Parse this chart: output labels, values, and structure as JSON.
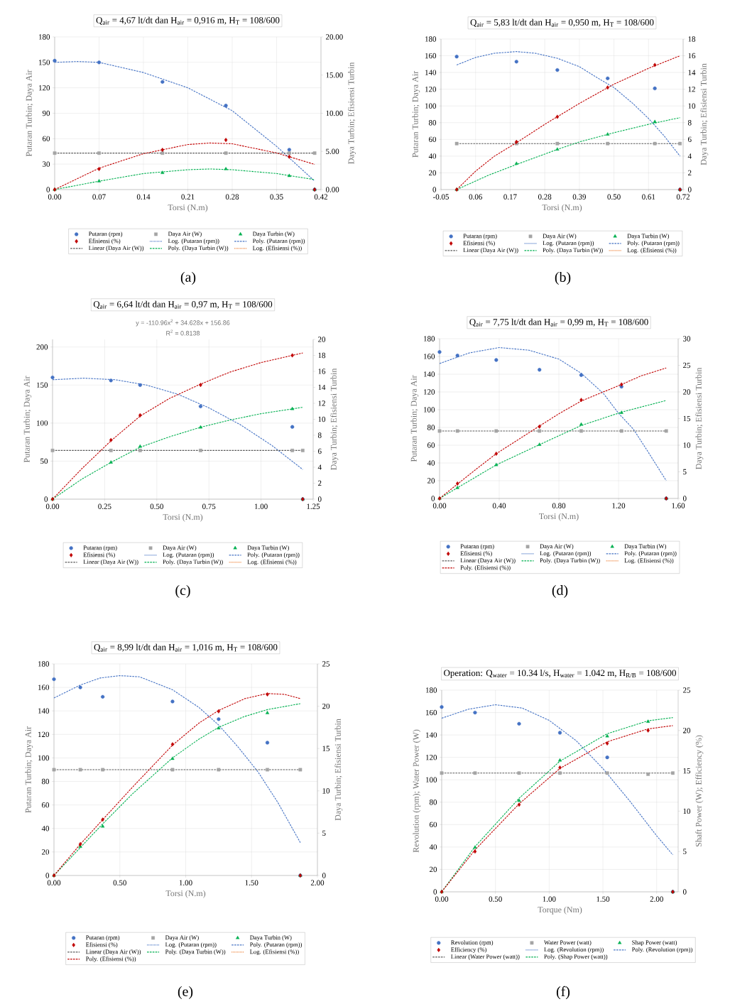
{
  "chart_data": [
    {
      "type": "scatter",
      "title": "Q$_{air}$ = 4,67 lt/dt dan H$_{air}$ = 0,916 m, H$_{T}$ = 108/600",
      "xlabel": "Torsi (N.m)",
      "ylabel": "Putaran Turbin; Daya Air",
      "y2label": "Daya Turbin; Efisiensi Turbin",
      "annotations": [
        "(a)"
      ],
      "xlim": [
        0,
        0.42
      ],
      "xticks": [
        {
          "value": 0,
          "label": "0.00"
        },
        0.07,
        0.14,
        0.21,
        0.28,
        0.35,
        0.42
      ],
      "ylim": [
        0,
        180
      ],
      "yticks": [
        0,
        30,
        60,
        90,
        120,
        150,
        180
      ],
      "y2lim": [
        0,
        20
      ],
      "y2ticks": [
        {
          "value": 0,
          "label": "0.00"
        },
        {
          "value": 5,
          "label": "5.00"
        },
        {
          "value": 10,
          "label": "10.00"
        },
        {
          "value": 15,
          "label": "15.00"
        },
        {
          "value": 20,
          "label": "20.00"
        }
      ],
      "grid": true,
      "legend": "bottom",
      "x": [
        0,
        0.07,
        0.17,
        0.27,
        0.37,
        0.41
      ],
      "series": [
        {
          "name": "Putaran (rpm)",
          "type": "scatter",
          "marker": "circle",
          "color": "#4472c4",
          "values": [
            152,
            150,
            127,
            99,
            47,
            0
          ]
        },
        {
          "name": "Daya Air (W)",
          "type": "scatter",
          "marker": "square",
          "color": "#a5a5a5",
          "values": [
            43,
            43,
            43,
            43,
            43,
            43
          ]
        },
        {
          "name": "Daya Turbin (W)",
          "type": "scatter",
          "marker": "triangle",
          "axis": "y2",
          "color": "#00b050",
          "values": [
            0,
            1.1,
            2.2,
            2.7,
            1.8,
            0
          ]
        },
        {
          "name": "Efisiensi (%)",
          "type": "scatter",
          "marker": "diamond",
          "axis": "y2",
          "color": "#c00000",
          "values": [
            0,
            2.7,
            5.2,
            6.5,
            4.3,
            0
          ]
        },
        {
          "name": "Log. (Putaran (rpm))",
          "type": "line",
          "line_style": "dotted",
          "color": "#4472c4",
          "values": [
            null,
            null,
            null,
            null,
            null,
            null
          ]
        },
        {
          "name": "Poly. (Putaran (rpm))",
          "type": "line",
          "line_style": "dashed",
          "color": "#4472c4",
          "x": [
            0,
            0.035,
            0.07,
            0.14,
            0.21,
            0.28,
            0.35,
            0.41
          ],
          "values": [
            150,
            151,
            150,
            138,
            120,
            93,
            51,
            10
          ]
        },
        {
          "name": "Linear (Daya Air (W))",
          "type": "line",
          "line_style": "dashed",
          "color": "#595959",
          "x": [
            0,
            0.41
          ],
          "values": [
            43,
            43
          ]
        },
        {
          "name": "Poly. (Daya Turbin (W))",
          "type": "line",
          "line_style": "dashed",
          "axis": "y2",
          "color": "#00b050",
          "x": [
            0,
            0.07,
            0.14,
            0.21,
            0.245,
            0.28,
            0.35,
            0.41
          ],
          "values": [
            0,
            1.1,
            2.1,
            2.6,
            2.7,
            2.6,
            2.1,
            1.3
          ]
        },
        {
          "name": "Log. (Efisiensi (%))",
          "type": "line",
          "line_style": "dotted",
          "color": "#ed7d31",
          "values": [
            null,
            null,
            null,
            null,
            null,
            null
          ]
        },
        {
          "type": "line",
          "line_style": "dashed",
          "axis": "y2",
          "color": "#c00000",
          "x": [
            0,
            0.07,
            0.14,
            0.21,
            0.245,
            0.28,
            0.35,
            0.41
          ],
          "values": [
            0,
            2.8,
            4.7,
            5.9,
            6.1,
            6.0,
            4.8,
            3.3
          ]
        }
      ]
    },
    {
      "type": "scatter",
      "title": "Q$_{air}$ = 5,83 lt/dt dan H$_{air}$ = 0,950 m, H$_{T}$ = 108/600",
      "xlabel": "Torsi (N.m)",
      "ylabel": "Putaran Turbin; Daya Air",
      "y2label": "Daya Turbin; Efisiensi Turbin",
      "annotations": [
        "(b)"
      ],
      "xlim": [
        -0.05,
        0.72
      ],
      "xticks": [
        -0.05,
        0.06,
        0.17,
        0.28,
        0.39,
        {
          "value": 0.5,
          "label": "0.50"
        },
        0.61,
        0.72
      ],
      "ylim": [
        0,
        180
      ],
      "yticks": [
        0,
        20,
        40,
        60,
        80,
        100,
        120,
        140,
        160,
        180
      ],
      "y2lim": [
        0,
        18
      ],
      "y2ticks": [
        0,
        2,
        4,
        6,
        8,
        10,
        12,
        14,
        16,
        18
      ],
      "grid": true,
      "legend": "bottom",
      "x": [
        0,
        0.19,
        0.32,
        0.48,
        0.63,
        0.71
      ],
      "series": [
        {
          "name": "Putaran (rpm)",
          "type": "scatter",
          "marker": "circle",
          "color": "#4472c4",
          "values": [
            159,
            153,
            143,
            133,
            121,
            0
          ]
        },
        {
          "name": "Daya Air (W)",
          "type": "scatter",
          "marker": "square",
          "color": "#a5a5a5",
          "values": [
            55,
            55,
            55,
            55,
            55,
            55
          ]
        },
        {
          "name": "Daya Turbin (W)",
          "type": "scatter",
          "marker": "triangle",
          "axis": "y2",
          "color": "#00b050",
          "values": [
            0,
            3.1,
            4.8,
            6.6,
            8.1,
            0
          ]
        },
        {
          "name": "Efisiensi (%)",
          "type": "scatter",
          "marker": "diamond",
          "axis": "y2",
          "color": "#c00000",
          "values": [
            0,
            5.7,
            8.7,
            12.2,
            14.9,
            0
          ]
        },
        {
          "name": "Log. (Putaran (rpm))",
          "type": "line",
          "line_style": "dotted",
          "color": "#4472c4",
          "values": [
            null,
            null,
            null,
            null,
            null,
            null
          ]
        },
        {
          "name": "Poly. (Putaran (rpm))",
          "type": "line",
          "line_style": "dashed",
          "color": "#4472c4",
          "x": [
            0,
            0.06,
            0.12,
            0.19,
            0.25,
            0.32,
            0.39,
            0.45,
            0.5,
            0.56,
            0.61,
            0.66,
            0.71
          ],
          "values": [
            149,
            158,
            163,
            165,
            163,
            157,
            147,
            133,
            122,
            103,
            85,
            64,
            40
          ]
        },
        {
          "name": "Linear (Daya Air (W))",
          "type": "line",
          "line_style": "dashed",
          "color": "#595959",
          "x": [
            0,
            0.71
          ],
          "values": [
            55,
            55
          ]
        },
        {
          "name": "Poly. (Daya Turbin (W))",
          "type": "line",
          "line_style": "dashed",
          "axis": "y2",
          "color": "#00b050",
          "x": [
            0,
            0.1,
            0.19,
            0.32,
            0.39,
            0.5,
            0.61,
            0.71
          ],
          "values": [
            0,
            1.7,
            3.0,
            4.8,
            5.7,
            6.8,
            7.8,
            8.6
          ]
        },
        {
          "name": "Log. (Efisiensi (%))",
          "type": "line",
          "line_style": "dotted",
          "color": "#ed7d31",
          "values": [
            null,
            null,
            null,
            null,
            null,
            null
          ]
        },
        {
          "type": "line",
          "line_style": "dashed",
          "axis": "y2",
          "color": "#c00000",
          "x": [
            0,
            0.06,
            0.12,
            0.19,
            0.28,
            0.39,
            0.5,
            0.61,
            0.71
          ],
          "values": [
            0,
            2.2,
            4.0,
            5.6,
            7.8,
            10.3,
            12.6,
            14.5,
            16.0
          ]
        }
      ]
    },
    {
      "type": "scatter",
      "title": "Q$_{air}$ = 6,64 lt/dt dan H$_{air}$ = 0,97 m, H$_{T}$ = 108/600",
      "xlabel": "Torsi (N.m)",
      "ylabel": "Putaran Turbin; Daya Air",
      "y2label": "Daya Turbin; Efisiensi Turbin",
      "annotations": [
        "y = -110.96x$^{2}$ + 34.628x  + 156.86",
        "R$^{2}$ = 0.8138",
        "(c)"
      ],
      "xlim": [
        0,
        1.25
      ],
      "xticks": [
        {
          "value": 0,
          "label": "0.00"
        },
        0.25,
        {
          "value": 0.5,
          "label": "0.50"
        },
        0.75,
        {
          "value": 1,
          "label": "1.00"
        },
        1.25
      ],
      "ylim": [
        0,
        210
      ],
      "yticks": [
        0,
        50,
        100,
        150,
        200
      ],
      "y2lim": [
        0,
        20
      ],
      "y2ticks": [
        0,
        2,
        4,
        6,
        8,
        10,
        12,
        14,
        16,
        18,
        20
      ],
      "grid": true,
      "legend": "bottom",
      "x": [
        0,
        0.28,
        0.42,
        0.71,
        1.15,
        1.2
      ],
      "series": [
        {
          "name": "Putaran (rpm)",
          "type": "scatter",
          "marker": "circle",
          "color": "#4472c4",
          "values": [
            160,
            156,
            150,
            122,
            95,
            0
          ]
        },
        {
          "name": "Daya Air (W)",
          "type": "scatter",
          "marker": "square",
          "color": "#a5a5a5",
          "values": [
            64,
            64,
            64,
            64,
            64,
            64
          ]
        },
        {
          "name": "Daya Turbin (W)",
          "type": "scatter",
          "marker": "triangle",
          "axis": "y2",
          "color": "#00b050",
          "values": [
            0,
            4.6,
            6.6,
            9.0,
            11.3,
            0
          ]
        },
        {
          "name": "Efisiensi (%)",
          "type": "scatter",
          "marker": "diamond",
          "axis": "y2",
          "color": "#c00000",
          "values": [
            0,
            7.4,
            10.5,
            14.3,
            18.0,
            0
          ]
        },
        {
          "name": "Log. (Putaran (rpm))",
          "type": "line",
          "line_style": "dotted",
          "color": "#4472c4",
          "values": [
            null,
            null,
            null,
            null,
            null,
            null
          ]
        },
        {
          "name": "Poly. (Putaran (rpm))",
          "type": "line",
          "line_style": "dashed",
          "color": "#4472c4",
          "x": [
            0,
            0.15,
            0.3,
            0.45,
            0.6,
            0.75,
            0.9,
            1.05,
            1.2
          ],
          "values": [
            157,
            159,
            157,
            150,
            138,
            120,
            98,
            71,
            39
          ]
        },
        {
          "name": "Linear (Daya Air (W))",
          "type": "line",
          "line_style": "dashed",
          "color": "#595959",
          "x": [
            0,
            1.2
          ],
          "values": [
            64,
            64
          ]
        },
        {
          "name": "Poly. (Daya Turbin (W))",
          "type": "line",
          "line_style": "dashed",
          "axis": "y2",
          "color": "#00b050",
          "x": [
            0,
            0.14,
            0.28,
            0.42,
            0.56,
            0.71,
            0.85,
            1.0,
            1.15,
            1.2
          ],
          "values": [
            0,
            2.5,
            4.6,
            6.5,
            7.8,
            9.0,
            9.9,
            10.7,
            11.3,
            11.5
          ]
        },
        {
          "name": "Log. (Efisiensi (%))",
          "type": "line",
          "line_style": "dotted",
          "color": "#ed7d31",
          "values": [
            null,
            null,
            null,
            null,
            null,
            null
          ]
        },
        {
          "type": "line",
          "line_style": "dashed",
          "axis": "y2",
          "color": "#c00000",
          "x": [
            0,
            0.14,
            0.28,
            0.42,
            0.56,
            0.71,
            0.85,
            1.0,
            1.15,
            1.2
          ],
          "values": [
            0,
            3.8,
            7.3,
            10.4,
            12.6,
            14.4,
            15.9,
            17.1,
            18.0,
            18.3
          ]
        }
      ]
    },
    {
      "type": "scatter",
      "title": "Q$_{air}$ = 7,75 lt/dt dan H$_{air}$ = 0,99 m, H$_{T}$ = 108/600",
      "xlabel": "Torsi (N.m)",
      "ylabel": "Putaran Turbin; Daya Air",
      "y2label": "Daya Turbin; Efisiensi Turbin",
      "annotations": [
        "(d)"
      ],
      "xlim": [
        0,
        1.6
      ],
      "xticks": [
        {
          "value": 0,
          "label": "0.00"
        },
        {
          "value": 0.4,
          "label": "0.40"
        },
        {
          "value": 0.8,
          "label": "0.80"
        },
        {
          "value": 1.2,
          "label": "1.20"
        },
        {
          "value": 1.6,
          "label": "1.60"
        }
      ],
      "ylim": [
        0,
        180
      ],
      "yticks": [
        0,
        20,
        40,
        60,
        80,
        100,
        120,
        140,
        160,
        180
      ],
      "y2lim": [
        0,
        30
      ],
      "y2ticks": [
        0,
        5,
        10,
        15,
        20,
        25,
        30
      ],
      "grid": true,
      "legend": "bottom",
      "x": [
        0,
        0.12,
        0.38,
        0.67,
        0.95,
        1.22,
        1.52
      ],
      "series": [
        {
          "name": "Putaran (rpm)",
          "type": "scatter",
          "marker": "circle",
          "color": "#4472c4",
          "values": [
            165,
            161,
            156,
            145,
            139,
            126,
            0
          ]
        },
        {
          "name": "Daya Air (W)",
          "type": "scatter",
          "marker": "square",
          "color": "#a5a5a5",
          "values": [
            76,
            76,
            76,
            76,
            76,
            76,
            76
          ]
        },
        {
          "name": "Daya Turbin (W)",
          "type": "scatter",
          "marker": "triangle",
          "axis": "y2",
          "color": "#00b050",
          "values": [
            0,
            2.0,
            6.3,
            10.1,
            13.9,
            16.1,
            0
          ]
        },
        {
          "name": "Efisiensi (%)",
          "type": "scatter",
          "marker": "diamond",
          "axis": "y2",
          "color": "#c00000",
          "values": [
            0,
            2.8,
            8.4,
            13.5,
            18.5,
            21.4,
            0
          ]
        },
        {
          "name": "Log. (Putaran (rpm))",
          "type": "line",
          "line_style": "dotted",
          "color": "#4472c4",
          "values": [
            null,
            null,
            null,
            null,
            null,
            null,
            null
          ]
        },
        {
          "name": "Poly. (Putaran (rpm))",
          "type": "line",
          "line_style": "dashed",
          "color": "#4472c4",
          "x": [
            0,
            0.2,
            0.4,
            0.6,
            0.8,
            0.95,
            1.1,
            1.2,
            1.3,
            1.4,
            1.52
          ],
          "values": [
            152,
            164,
            170,
            167,
            157,
            141,
            118,
            96,
            78,
            52,
            20
          ]
        },
        {
          "name": "Linear (Daya Air (W))",
          "type": "line",
          "line_style": "dashed",
          "color": "#595959",
          "x": [
            0,
            1.52
          ],
          "values": [
            76,
            76
          ]
        },
        {
          "name": "Poly. (Daya Turbin (W))",
          "type": "line",
          "line_style": "dashed",
          "axis": "y2",
          "color": "#00b050",
          "x": [
            0,
            0.12,
            0.38,
            0.67,
            0.95,
            1.22,
            1.52
          ],
          "values": [
            0,
            2.0,
            6.3,
            10.1,
            13.7,
            16.2,
            18.4
          ]
        },
        {
          "name": "Log. (Efisiensi (%))",
          "type": "line",
          "line_style": "dotted",
          "color": "#ed7d31",
          "values": [
            null,
            null,
            null,
            null,
            null,
            null,
            null
          ]
        },
        {
          "name": "Poly. (Efisiensi (%))",
          "type": "line",
          "line_style": "dashed",
          "axis": "y2",
          "color": "#c00000",
          "x": [
            0,
            0.12,
            0.25,
            0.38,
            0.67,
            0.8,
            0.95,
            1.22,
            1.35,
            1.52
          ],
          "values": [
            0,
            2.7,
            5.6,
            8.4,
            13.6,
            15.9,
            18.3,
            21.4,
            23.0,
            24.5
          ]
        }
      ]
    },
    {
      "type": "scatter",
      "title": "Q$_{air}$ = 8,99 lt/dt dan H$_{air}$ = 1,016 m, H$_{T}$ = 108/600",
      "xlabel": "Torsi (N.m)",
      "ylabel": "Putaran Turbin; Daya Air",
      "y2label": "Daya Turbin; Efisiensi Turbin",
      "annotations": [
        "(e)"
      ],
      "xlim": [
        0,
        2
      ],
      "xticks": [
        {
          "value": 0,
          "label": "0.00"
        },
        {
          "value": 0.5,
          "label": "0.50"
        },
        {
          "value": 1,
          "label": "1.00"
        },
        {
          "value": 1.5,
          "label": "1.50"
        },
        {
          "value": 2,
          "label": "2.00"
        }
      ],
      "ylim": [
        0,
        180
      ],
      "yticks": [
        0,
        20,
        40,
        60,
        80,
        100,
        120,
        140,
        160,
        180
      ],
      "y2lim": [
        0,
        25
      ],
      "y2ticks": [
        0,
        5,
        10,
        15,
        20,
        25
      ],
      "grid": true,
      "legend": "bottom",
      "x": [
        0,
        0.2,
        0.37,
        0.9,
        1.25,
        1.62,
        1.87
      ],
      "series": [
        {
          "name": "Putaran (rpm)",
          "type": "scatter",
          "marker": "circle",
          "color": "#4472c4",
          "values": [
            167,
            160,
            152,
            148,
            133,
            113,
            0
          ]
        },
        {
          "name": "Daya Air (W)",
          "type": "scatter",
          "marker": "square",
          "color": "#a5a5a5",
          "values": [
            90,
            90,
            90,
            90,
            90,
            90,
            90
          ]
        },
        {
          "name": "Daya Turbin (W)",
          "type": "scatter",
          "marker": "triangle",
          "axis": "y2",
          "color": "#00b050",
          "values": [
            0,
            3.4,
            5.8,
            13.8,
            17.4,
            19.2,
            0
          ]
        },
        {
          "name": "Efisiensi (%)",
          "type": "scatter",
          "marker": "diamond",
          "axis": "y2",
          "color": "#c00000",
          "values": [
            0,
            3.7,
            6.6,
            15.5,
            19.4,
            21.4,
            0
          ]
        },
        {
          "name": "Log. (Putaran (rpm))",
          "type": "line",
          "line_style": "dotted",
          "color": "#4472c4",
          "values": [
            null,
            null,
            null,
            null,
            null,
            null,
            null
          ]
        },
        {
          "name": "Poly. (Putaran (rpm))",
          "type": "line",
          "line_style": "dashed",
          "color": "#4472c4",
          "x": [
            0,
            0.2,
            0.35,
            0.5,
            0.65,
            0.9,
            1.1,
            1.25,
            1.4,
            1.55,
            1.7,
            1.87
          ],
          "values": [
            151,
            162,
            168,
            170,
            169,
            158,
            143,
            128,
            109,
            88,
            62,
            28
          ]
        },
        {
          "name": "Linear (Daya Air (W))",
          "type": "line",
          "line_style": "dashed",
          "color": "#595959",
          "x": [
            0,
            1.87
          ],
          "values": [
            90,
            90
          ]
        },
        {
          "name": "Poly. (Daya Turbin (W))",
          "type": "line",
          "line_style": "dashed",
          "axis": "y2",
          "color": "#00b050",
          "x": [
            0,
            0.2,
            0.37,
            0.6,
            0.9,
            1.1,
            1.25,
            1.45,
            1.62,
            1.87
          ],
          "values": [
            0,
            3.3,
            6.1,
            9.7,
            13.9,
            16.1,
            17.5,
            18.8,
            19.6,
            20.3
          ]
        },
        {
          "name": "Log. (Efisiensi (%))",
          "type": "line",
          "line_style": "dotted",
          "color": "#ed7d31",
          "values": [
            null,
            null,
            null,
            null,
            null,
            null,
            null
          ]
        },
        {
          "name": "Poly. (Efisiensi (%))",
          "type": "line",
          "line_style": "dashed",
          "axis": "y2",
          "color": "#c00000",
          "x": [
            0,
            0.2,
            0.37,
            0.6,
            0.9,
            1.1,
            1.25,
            1.45,
            1.62,
            1.75,
            1.87
          ],
          "values": [
            0,
            3.7,
            6.6,
            10.5,
            15.4,
            18.0,
            19.5,
            20.9,
            21.5,
            21.4,
            20.9
          ]
        }
      ]
    },
    {
      "type": "scatter",
      "title": "Operation: Q$_{water}$ = 10.34 l/s, H$_{water}$ = 1.042 m, H$_{R/B}$ = 108/600",
      "xlabel": "Torque (Nm)",
      "ylabel": "Revolution (rpm); Water Power (W)",
      "y2label": "Shaft Power (W); Efficiency (%)",
      "annotations": [
        "(f)"
      ],
      "xlim": [
        0,
        2.2
      ],
      "xticks": [
        {
          "value": 0,
          "label": "0.00"
        },
        {
          "value": 0.5,
          "label": "0.50"
        },
        {
          "value": 1,
          "label": "1.00"
        },
        {
          "value": 1.5,
          "label": "1.50"
        },
        {
          "value": 2,
          "label": "2.00"
        }
      ],
      "ylim": [
        0,
        180
      ],
      "yticks": [
        0,
        20,
        40,
        60,
        80,
        100,
        120,
        140,
        160,
        180
      ],
      "y2lim": [
        0,
        25
      ],
      "y2ticks": [
        0,
        5,
        10,
        15,
        20,
        25
      ],
      "grid": true,
      "legend": "bottom",
      "x": [
        0,
        0.31,
        0.72,
        1.1,
        1.54,
        1.92,
        2.15
      ],
      "series": [
        {
          "name": "Revolution (rpm)",
          "type": "scatter",
          "marker": "circle",
          "color": "#4472c4",
          "values": [
            165,
            160,
            150,
            142,
            120,
            null,
            0
          ]
        },
        {
          "name": "Water Power (watt)",
          "type": "scatter",
          "marker": "square",
          "color": "#a5a5a5",
          "values": [
            106,
            106,
            106,
            106,
            106,
            105,
            106
          ]
        },
        {
          "name": "Shap Power (watt)",
          "type": "scatter",
          "marker": "triangle",
          "axis": "y2",
          "color": "#00b050",
          "values": [
            0,
            5.5,
            11.3,
            16.3,
            19.3,
            21.1,
            0
          ]
        },
        {
          "name": "Efficiency (%)",
          "type": "scatter",
          "marker": "diamond",
          "axis": "y2",
          "color": "#c00000",
          "values": [
            0,
            5.0,
            10.8,
            15.4,
            18.4,
            20.0,
            0
          ]
        },
        {
          "name": "Log. (Revolution (rpm))",
          "type": "line",
          "line_style": "dotted",
          "color": "#4472c4",
          "values": [
            null,
            null,
            null,
            null,
            null,
            null,
            null
          ]
        },
        {
          "name": "Poly. (Revolution (rpm))",
          "type": "line",
          "line_style": "dashed",
          "color": "#4472c4",
          "x": [
            0,
            0.25,
            0.5,
            0.75,
            1.0,
            1.25,
            1.5,
            1.75,
            2.0,
            2.15
          ],
          "values": [
            155,
            163,
            167,
            164,
            153,
            135,
            110,
            81,
            50,
            33
          ]
        },
        {
          "name": "Linear (Water Power (watt))",
          "type": "line",
          "line_style": "dashed",
          "color": "#595959",
          "x": [
            0,
            2.15
          ],
          "values": [
            106,
            106
          ]
        },
        {
          "name": "Poly. (Shap Power (watt))",
          "type": "line",
          "line_style": "dashed",
          "axis": "y2",
          "color": "#00b050",
          "x": [
            0,
            0.31,
            0.72,
            1.1,
            1.54,
            1.92,
            2.15
          ],
          "values": [
            0,
            5.6,
            11.6,
            16.2,
            19.6,
            21.2,
            21.6
          ]
        },
        {
          "type": "line",
          "line_style": "dashed",
          "axis": "y2",
          "color": "#c00000",
          "x": [
            0,
            0.31,
            0.72,
            1.1,
            1.54,
            1.92,
            2.15
          ],
          "values": [
            0,
            5.2,
            10.9,
            15.3,
            18.6,
            20.2,
            20.6
          ]
        }
      ]
    }
  ]
}
